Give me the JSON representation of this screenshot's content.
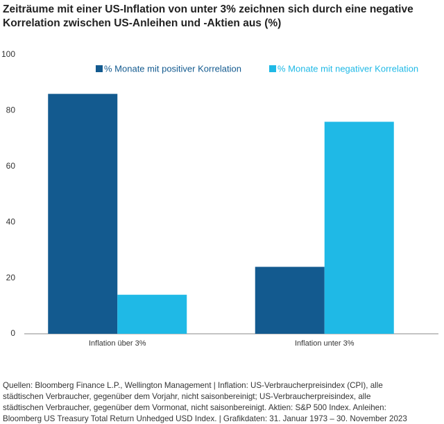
{
  "chart_data": {
    "type": "bar",
    "title": "Zeiträume mit einer US-Inflation von unter 3% zeichnen sich durch eine negative Korrelation zwischen US-Anleihen und -Aktien aus (%)",
    "categories": [
      "Inflation über 3%",
      "Inflation unter 3%"
    ],
    "series": [
      {
        "name": "% Monate mit positiver Korrelation",
        "color": "#135a8f",
        "values": [
          86,
          24
        ]
      },
      {
        "name": "% Monate mit negativer Korrelation",
        "color": "#1fb9e6",
        "values": [
          14,
          76
        ]
      }
    ],
    "ylim": [
      0,
      100
    ],
    "yticks": [
      0,
      20,
      40,
      60,
      80,
      100
    ],
    "grid": false,
    "legend": "upper right",
    "footnote": [
      "Quellen: Bloomberg Finance L.P., Wellington Management  |  Inflation: US-Verbraucherpreisindex (CPI), alle",
      "städtischen Verbraucher, gegenüber dem Vorjahr, nicht saisonbereinigt; US-Verbraucherpreisindex, alle",
      "städtischen Verbraucher, gegenüber dem Vormonat, nicht saisonbereinigt. Aktien: S&P 500 Index. Anleihen:",
      "Bloomberg US Treasury Total Return Unhedged USD Index.  |  Grafikdaten: 31. Januar 1973 – 30. November 2023"
    ]
  }
}
